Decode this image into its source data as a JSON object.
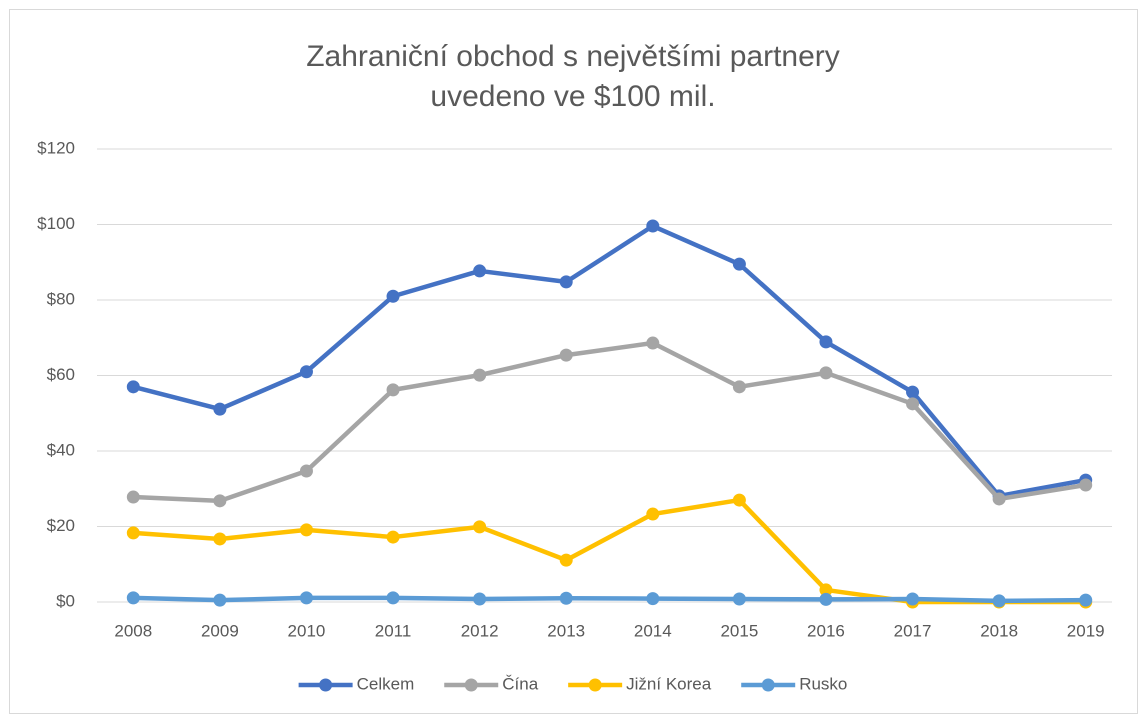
{
  "chart_data": {
    "type": "line",
    "title": "Zahraniční obchod s největšími partnery",
    "subtitle": "uvedeno ve $100 mil.",
    "categories": [
      "2008",
      "2009",
      "2010",
      "2011",
      "2012",
      "2013",
      "2014",
      "2015",
      "2016",
      "2017",
      "2018",
      "2019"
    ],
    "series": [
      {
        "name": "Celkem",
        "color": "#4472c4",
        "values": [
          57,
          51.1,
          61,
          81,
          87.7,
          84.8,
          99.6,
          89.5,
          68.9,
          55.6,
          28.1,
          32.3
        ]
      },
      {
        "name": "Čína",
        "color": "#a5a5a5",
        "values": [
          27.8,
          26.8,
          34.7,
          56.2,
          60.1,
          65.4,
          68.6,
          57,
          60.7,
          52.5,
          27.3,
          31
        ]
      },
      {
        "name": "Jižní Korea",
        "color": "#ffc000",
        "values": [
          18.3,
          16.7,
          19.1,
          17.2,
          19.9,
          11.1,
          23.3,
          27,
          3.2,
          0,
          0,
          0
        ]
      },
      {
        "name": "Rusko",
        "color": "#5b9bd5",
        "values": [
          1.1,
          0.5,
          1.1,
          1.1,
          0.8,
          1,
          0.9,
          0.8,
          0.7,
          0.8,
          0.3,
          0.5
        ]
      }
    ],
    "ylim": [
      0,
      120
    ],
    "yticks": [
      {
        "value": 0,
        "label": "$0"
      },
      {
        "value": 20,
        "label": "$20"
      },
      {
        "value": 40,
        "label": "$40"
      },
      {
        "value": 60,
        "label": "$60"
      },
      {
        "value": 80,
        "label": "$80"
      },
      {
        "value": 100,
        "label": "$100"
      },
      {
        "value": 120,
        "label": "$120"
      }
    ],
    "grid": true,
    "legend": "bottom"
  }
}
